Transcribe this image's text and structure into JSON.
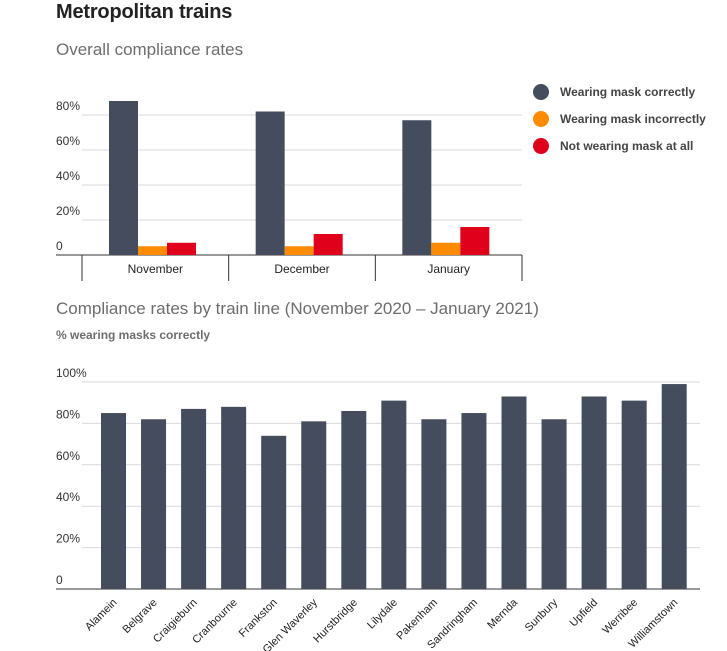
{
  "page": {
    "title": "Metropolitan trains"
  },
  "colors": {
    "correct": "#444c5e",
    "incorrect": "#ff8c00",
    "none": "#e0001b",
    "grid": "#d9d9d9",
    "axis": "#333333"
  },
  "legend": [
    {
      "label": "Wearing mask correctly",
      "color": "#444c5e"
    },
    {
      "label": "Wearing mask incorrectly",
      "color": "#ff8c00"
    },
    {
      "label": "Not wearing mask at all",
      "color": "#e0001b"
    }
  ],
  "chart_data": [
    {
      "type": "bar",
      "title": "Overall compliance rates",
      "categories": [
        "November",
        "December",
        "January"
      ],
      "series": [
        {
          "name": "Wearing mask correctly",
          "values": [
            88,
            82,
            77
          ]
        },
        {
          "name": "Wearing mask incorrectly",
          "values": [
            5,
            5,
            7
          ]
        },
        {
          "name": "Not wearing mask at all",
          "values": [
            7,
            12,
            16
          ]
        }
      ],
      "ylim": [
        0,
        80
      ],
      "yticks": [
        "0",
        "20%",
        "40%",
        "60%",
        "80%"
      ],
      "grid": true,
      "legend_position": "right"
    },
    {
      "type": "bar",
      "title": "Compliance rates by train line (November 2020 – January 2021)",
      "ylabel": "% wearing masks correctly",
      "categories": [
        "Alamein",
        "Belgrave",
        "Craigieburn",
        "Cranbourne",
        "Frankston",
        "Glen Waverley",
        "Hurstbridge",
        "Lilydale",
        "Pakenham",
        "Sandringham",
        "Mernda",
        "Sunbury",
        "Upfield",
        "Werribee",
        "Williamstown"
      ],
      "values": [
        85,
        82,
        87,
        88,
        74,
        81,
        86,
        91,
        82,
        85,
        93,
        82,
        93,
        91,
        99
      ],
      "ylim": [
        0,
        100
      ],
      "yticks": [
        "0",
        "20%",
        "40%",
        "60%",
        "80%",
        "100%"
      ],
      "grid": true
    }
  ]
}
